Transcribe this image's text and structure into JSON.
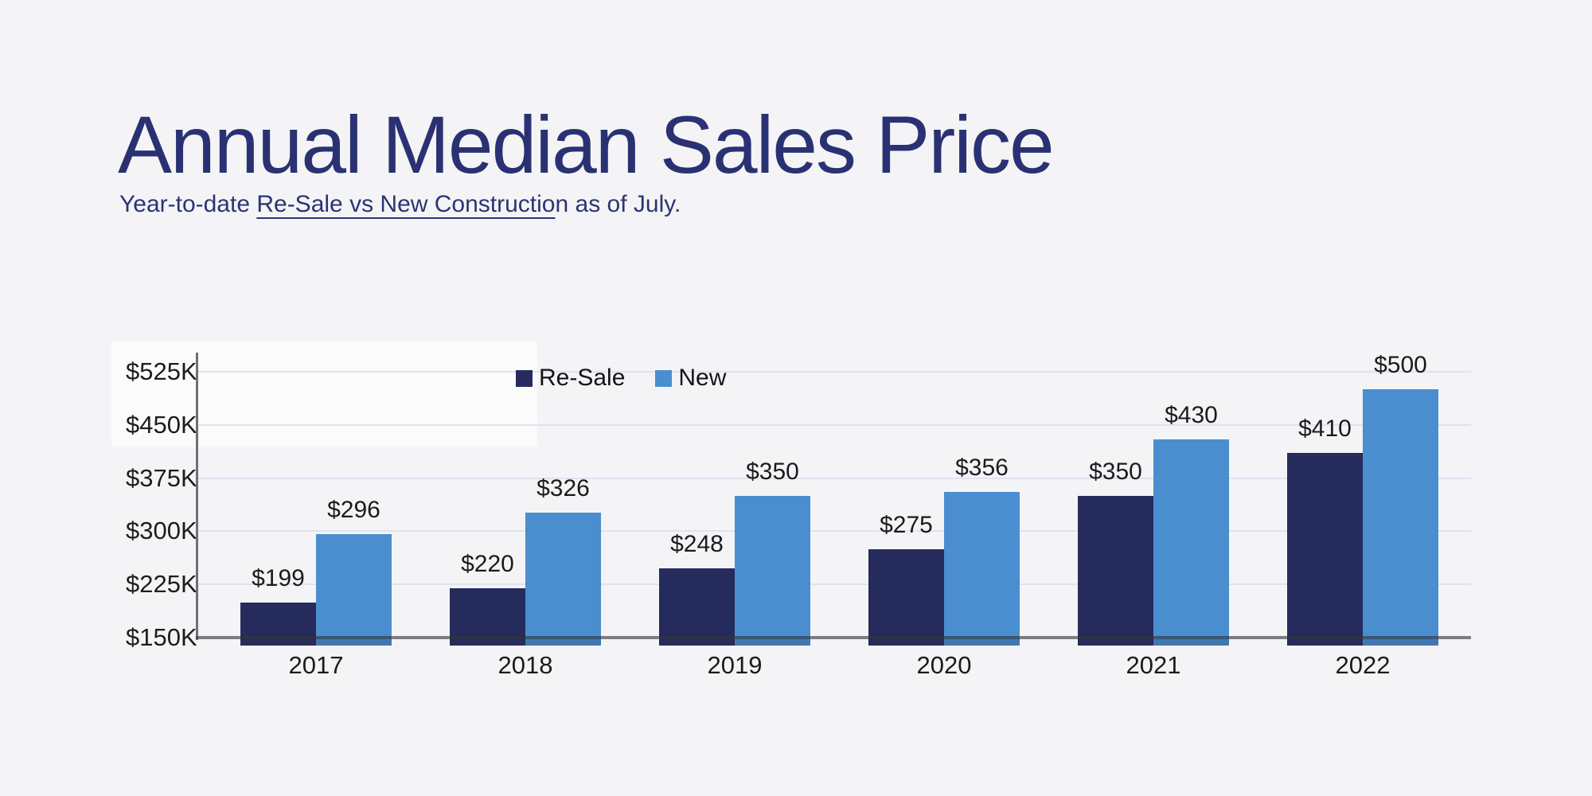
{
  "header": {
    "title": "Annual Median Sales Price",
    "subtitle_prefix": "Year-to-date ",
    "subtitle_underlined": "Re-Sale vs New Constructio",
    "subtitle_suffix": "n as of July.",
    "subtitle_full": "Year-to-date Re-Sale vs New Construction as of July."
  },
  "colors": {
    "background": "#f4f4f6",
    "title_text": "#2a3173",
    "resale_bar": "#262b5e",
    "new_bar": "#4a8ed0",
    "gridline": "#dce3f0",
    "axis_line": "#6f7076",
    "value_label_text": "#1b1b1b"
  },
  "chart_data": {
    "type": "bar",
    "title": "Annual Median Sales Price",
    "subtitle": "Year-to-date Re-Sale vs New Construction as of July.",
    "categories": [
      "2017",
      "2018",
      "2019",
      "2020",
      "2021",
      "2022"
    ],
    "series": [
      {
        "name": "Re-Sale",
        "color": "#262b5e",
        "values": [
          199,
          220,
          248,
          275,
          350,
          410
        ],
        "labels": [
          "$199",
          "$220",
          "$248",
          "$275",
          "$350",
          "$410"
        ]
      },
      {
        "name": "New",
        "color": "#4a8ed0",
        "values": [
          296,
          326,
          350,
          356,
          430,
          500
        ],
        "labels": [
          "$296",
          "$326",
          "$350",
          "$356",
          "$430",
          "$500"
        ]
      }
    ],
    "y_axis": {
      "ticks": [
        "$525K",
        "$450K",
        "$375K",
        "$300K",
        "$225K",
        "$150K"
      ],
      "tick_values": [
        525,
        450,
        375,
        300,
        225,
        150
      ],
      "min": 150,
      "max": 525,
      "units": "thousand USD"
    },
    "legend": {
      "entries": [
        "Re-Sale",
        "New"
      ],
      "position": "top-center"
    },
    "grid": true,
    "ylim": [
      150,
      545
    ]
  }
}
